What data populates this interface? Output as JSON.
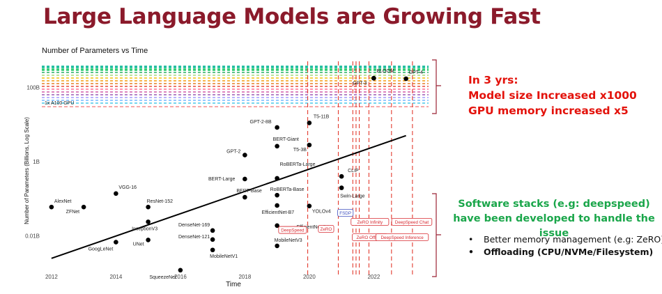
{
  "slide": {
    "title": "Large Language Models are Growing Fast",
    "red_lines": [
      "In 3 yrs:",
      "Model size Increased x1000",
      "GPU memory increased x5"
    ],
    "green_text": "Software stacks (e.g: deepspeed) have been developed to handle the issue",
    "bullets": [
      {
        "text": "Better memory management (e.g: ZeRO)",
        "bold": false
      },
      {
        "text": "Offloading (CPU/NVMe/Filesystem)",
        "bold": true
      }
    ],
    "colors": {
      "title": "#8b1a2b",
      "highlight_red": "#e3120b",
      "highlight_green": "#1aa64a",
      "brace": "#9b2335"
    }
  },
  "chart_data": {
    "type": "scatter",
    "title": "Number of Parameters vs Time",
    "xlabel": "Time",
    "ylabel": "Number of Parameters (Billions, Log Scale)",
    "y_scale": "log",
    "xlim": [
      2011.7,
      2023.7
    ],
    "ylim": [
      0.001,
      500
    ],
    "x_ticks": [
      {
        "value": 2012,
        "label": "2012"
      },
      {
        "value": 2014,
        "label": "2014"
      },
      {
        "value": 2016,
        "label": "2016"
      },
      {
        "value": 2018,
        "label": "2018"
      },
      {
        "value": 2020,
        "label": "2020"
      },
      {
        "value": 2022,
        "label": "2022"
      }
    ],
    "y_ticks": [
      {
        "value": 0.01,
        "label": "0.01B"
      },
      {
        "value": 1,
        "label": "1B"
      },
      {
        "value": 100,
        "label": "100B"
      }
    ],
    "grid": false,
    "points": [
      {
        "label": "AlexNet",
        "x": 2012.0,
        "y": 0.06
      },
      {
        "label": "ZFNet",
        "x": 2013.0,
        "y": 0.06
      },
      {
        "label": "VGG-16",
        "x": 2014.0,
        "y": 0.138
      },
      {
        "label": "GoogLeNet",
        "x": 2014.0,
        "y": 0.0068
      },
      {
        "label": "ResNet-152",
        "x": 2015.0,
        "y": 0.06
      },
      {
        "label": "InceptionV3",
        "x": 2015.0,
        "y": 0.024
      },
      {
        "label": "UNet",
        "x": 2015.0,
        "y": 0.0078
      },
      {
        "label": "SqueezeNet",
        "x": 2016.0,
        "y": 0.0012
      },
      {
        "label": "DenseNet-169",
        "x": 2017.0,
        "y": 0.014
      },
      {
        "label": "DenseNet-121",
        "x": 2017.0,
        "y": 0.008
      },
      {
        "label": "MobileNetV1",
        "x": 2017.0,
        "y": 0.0042
      },
      {
        "label": "GPT-2",
        "x": 2018.0,
        "y": 1.5
      },
      {
        "label": "BERT-Large",
        "x": 2018.0,
        "y": 0.34
      },
      {
        "label": "BERT-Base",
        "x": 2018.0,
        "y": 0.11
      },
      {
        "label": "GPT-2-8B",
        "x": 2019.0,
        "y": 8.3
      },
      {
        "label": "BERT-Giant",
        "x": 2019.0,
        "y": 2.6
      },
      {
        "label": "RoBERTa-Large",
        "x": 2019.0,
        "y": 0.355
      },
      {
        "label": "RoBERTa-Base",
        "x": 2019.0,
        "y": 0.125
      },
      {
        "label": "EfficientNet-B7",
        "x": 2019.0,
        "y": 0.066
      },
      {
        "label": "EfficientNet-B4",
        "x": 2019.0,
        "y": 0.019
      },
      {
        "label": "MobileNetV3",
        "x": 2019.0,
        "y": 0.0054
      },
      {
        "label": "T5-11B",
        "x": 2020.0,
        "y": 11
      },
      {
        "label": "T5-3B",
        "x": 2020.0,
        "y": 2.8
      },
      {
        "label": "YOLOv4",
        "x": 2020.0,
        "y": 0.064
      },
      {
        "label": "CLIP",
        "x": 2021.0,
        "y": 0.4
      },
      {
        "label": "Swin-Large",
        "x": 2021.0,
        "y": 0.197
      },
      {
        "label": "GPT-3",
        "x": 2022.0,
        "y": 175
      },
      {
        "label": "BLOOM",
        "x": 2022.0,
        "y": 176
      },
      {
        "label": "GPT-4",
        "x": 2023.0,
        "y": 170
      }
    ],
    "trend_line": {
      "x": [
        2012,
        2023
      ],
      "y": [
        0.0025,
        5.0
      ]
    },
    "hlines": [
      {
        "label": "1x A100 GPU",
        "y": 30,
        "color": "#ee5555"
      }
    ],
    "vlines": [
      2019.95,
      2020.9,
      2021.35,
      2021.45,
      2021.55,
      2021.85,
      2022.55,
      2023.2
    ],
    "software_labels": [
      {
        "label": "DeepSpeed",
        "x": 2019.48,
        "y": 0.0145
      },
      {
        "label": "ZeRO",
        "x": 2020.52,
        "y": 0.0155
      },
      {
        "label": "FSDP",
        "x": 2021.12,
        "y": 0.042
      },
      {
        "label": "ZeRO Infinity",
        "x": 2021.88,
        "y": 0.024
      },
      {
        "label": "DeepSpeed Chat",
        "x": 2023.18,
        "y": 0.024
      },
      {
        "label": "ZeRO Offload",
        "x": 2021.88,
        "y": 0.0092
      },
      {
        "label": "DeepSpeed Inference",
        "x": 2022.88,
        "y": 0.0092
      }
    ]
  }
}
